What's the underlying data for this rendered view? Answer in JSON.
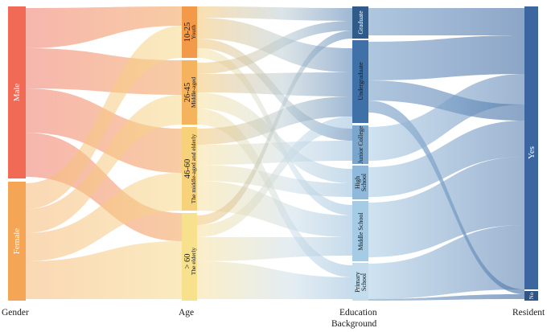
{
  "diagram": {
    "type": "sankey",
    "columns": [
      {
        "id": "gender",
        "label": "Gender",
        "nodes": [
          {
            "id": "male",
            "label": "Male",
            "color": "#f06a55"
          },
          {
            "id": "female",
            "label": "Female",
            "color": "#f4a556"
          }
        ]
      },
      {
        "id": "age",
        "label": "Age",
        "nodes": [
          {
            "id": "age1",
            "label": "10-25",
            "sub": "Youth",
            "color": "#f39a4a"
          },
          {
            "id": "age2",
            "label": "26-45",
            "sub": "Middle-aged",
            "color": "#f5b35e"
          },
          {
            "id": "age3",
            "label": "46-60",
            "sub": "The middle-aged and elderly",
            "color": "#f8d27a"
          },
          {
            "id": "age4",
            "label": "> 60",
            "sub": "The elderly",
            "color": "#f8e18c"
          }
        ]
      },
      {
        "id": "education",
        "label": "Education",
        "label2": "Background",
        "nodes": [
          {
            "id": "edu1",
            "label": "Graduate",
            "color": "#2f5a8a"
          },
          {
            "id": "edu2",
            "label": "Undergraduate",
            "color": "#3f70a8"
          },
          {
            "id": "edu3",
            "label": "Junior College",
            "color": "#7aa6cc"
          },
          {
            "id": "edu4",
            "label": "High",
            "label_b": "School",
            "color": "#8fb9da"
          },
          {
            "id": "edu5",
            "label": "Middle School",
            "color": "#a6cbe5"
          },
          {
            "id": "edu6",
            "label": "Primary",
            "label_b": "School",
            "color": "#c3dcee"
          }
        ]
      },
      {
        "id": "resident",
        "label": "Resident",
        "nodes": [
          {
            "id": "yes",
            "label": "Yes",
            "color": "#3b66a0"
          },
          {
            "id": "no",
            "label": "No",
            "color": "#2e5586"
          }
        ]
      }
    ]
  }
}
